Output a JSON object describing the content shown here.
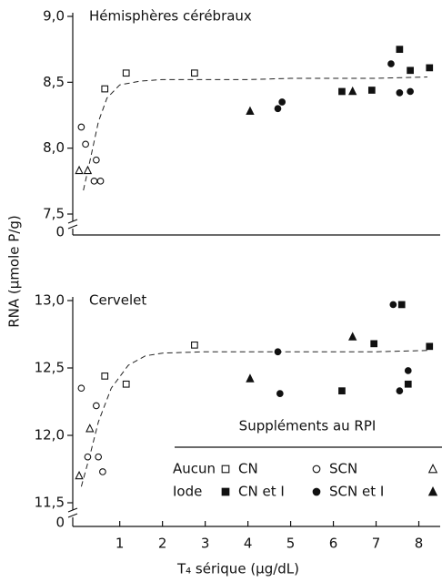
{
  "chart_data": [
    {
      "type": "scatter",
      "title": "Hémisphères cérébraux",
      "ylabel": "RNA (μmole P/g)",
      "xlim": [
        -0.1,
        8.5
      ],
      "ylim": [
        7.5,
        9.0
      ],
      "yticks": [
        {
          "value": 7.5,
          "label": "7,5"
        },
        {
          "value": 8.0,
          "label": "8,0"
        },
        {
          "value": 8.5,
          "label": "8,5"
        },
        {
          "value": 9.0,
          "label": "9,0"
        }
      ],
      "y_break_tick": 0,
      "series": [
        {
          "group": "Aucun",
          "name": "CN",
          "marker": "square",
          "filled": false,
          "color": "#111111",
          "x": [
            0.65,
            1.15,
            2.75
          ],
          "values": [
            8.45,
            8.57,
            8.57
          ]
        },
        {
          "group": "Aucun",
          "name": "SCN",
          "marker": "circle",
          "filled": false,
          "color": "#111111",
          "x": [
            0.1,
            0.2,
            0.45,
            0.4,
            0.55
          ],
          "values": [
            8.16,
            8.03,
            7.91,
            7.75,
            7.75
          ]
        },
        {
          "group": "Aucun",
          "marker": "triangle",
          "filled": false,
          "color": "#111111",
          "x": [
            0.05,
            0.25
          ],
          "values": [
            7.83,
            7.83
          ]
        },
        {
          "group": "Iode",
          "name": "CN et I",
          "marker": "square",
          "filled": true,
          "color": "#111111",
          "x": [
            6.2,
            6.9,
            7.55,
            7.8,
            8.25
          ],
          "values": [
            8.43,
            8.44,
            8.75,
            8.59,
            8.61
          ]
        },
        {
          "group": "Iode",
          "name": "SCN et I",
          "marker": "circle",
          "filled": true,
          "color": "#111111",
          "x": [
            4.7,
            4.8,
            7.35,
            7.55,
            7.8
          ],
          "values": [
            8.3,
            8.35,
            8.64,
            8.42,
            8.43
          ]
        },
        {
          "group": "Iode",
          "marker": "triangle",
          "filled": true,
          "color": "#111111",
          "x": [
            4.05,
            6.45
          ],
          "values": [
            8.28,
            8.43
          ]
        }
      ],
      "fit": {
        "x": [
          0.15,
          0.3,
          0.5,
          0.7,
          1.0,
          1.5,
          2,
          3,
          4,
          5,
          6,
          7,
          8.2
        ],
        "values": [
          7.68,
          7.9,
          8.2,
          8.38,
          8.48,
          8.51,
          8.52,
          8.52,
          8.52,
          8.53,
          8.53,
          8.53,
          8.54
        ]
      }
    },
    {
      "type": "scatter",
      "title": "Cervelet",
      "xlabel": "T₄ sérique (μg/dL)",
      "xlim": [
        -0.1,
        8.5
      ],
      "ylim": [
        11.5,
        13.0
      ],
      "xticks": [
        1,
        2,
        3,
        4,
        5,
        6,
        7,
        8
      ],
      "yticks": [
        {
          "value": 11.5,
          "label": "11,5"
        },
        {
          "value": 12.0,
          "label": "12,0"
        },
        {
          "value": 12.5,
          "label": "12,5"
        },
        {
          "value": 13.0,
          "label": "13,0"
        }
      ],
      "y_break_tick": 0,
      "legend": {
        "title": "Suppléments au RPI",
        "corner": "lower right"
      },
      "series": [
        {
          "group": "Aucun",
          "name": "CN",
          "marker": "square",
          "filled": false,
          "color": "#111111",
          "x": [
            0.65,
            1.15,
            2.75
          ],
          "values": [
            12.44,
            12.38,
            12.67
          ]
        },
        {
          "group": "Aucun",
          "name": "SCN",
          "marker": "circle",
          "filled": false,
          "color": "#111111",
          "x": [
            0.1,
            0.25,
            0.45,
            0.5,
            0.6
          ],
          "values": [
            12.35,
            11.84,
            12.22,
            11.84,
            11.73
          ]
        },
        {
          "group": "Aucun",
          "marker": "triangle",
          "filled": false,
          "color": "#111111",
          "x": [
            0.05,
            0.3
          ],
          "values": [
            11.7,
            12.05
          ]
        },
        {
          "group": "Iode",
          "name": "CN et I",
          "marker": "square",
          "filled": true,
          "color": "#111111",
          "x": [
            6.2,
            6.95,
            7.6,
            7.75,
            8.25
          ],
          "values": [
            12.33,
            12.68,
            12.97,
            12.38,
            12.66
          ]
        },
        {
          "group": "Iode",
          "name": "SCN et I",
          "marker": "circle",
          "filled": true,
          "color": "#111111",
          "x": [
            4.7,
            4.75,
            7.4,
            7.55,
            7.75
          ],
          "values": [
            12.62,
            12.31,
            12.97,
            12.33,
            12.48
          ]
        },
        {
          "group": "Iode",
          "marker": "triangle",
          "filled": true,
          "color": "#111111",
          "x": [
            4.05,
            6.45
          ],
          "values": [
            12.42,
            12.73
          ]
        }
      ],
      "fit": {
        "x": [
          0.1,
          0.3,
          0.5,
          0.8,
          1.2,
          1.6,
          2,
          3,
          4,
          5,
          6,
          7,
          8.2
        ],
        "values": [
          11.62,
          11.85,
          12.1,
          12.35,
          12.52,
          12.59,
          12.61,
          12.62,
          12.62,
          12.62,
          12.62,
          12.62,
          12.63
        ]
      }
    }
  ]
}
